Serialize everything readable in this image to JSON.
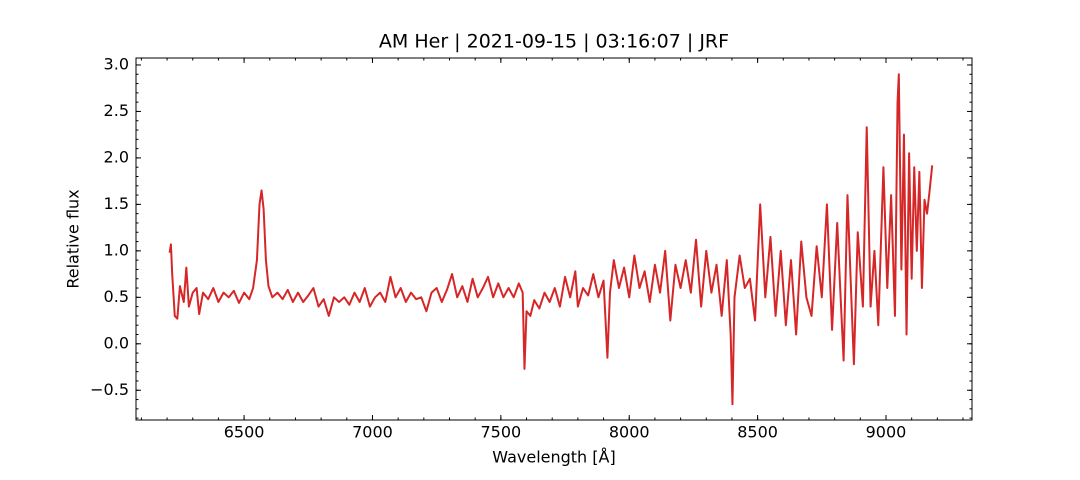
{
  "chart_data": {
    "type": "line",
    "title": "AM Her | 2021-09-15 | 03:16:07 | JRF",
    "x_label": "Wavelength [Å]",
    "y_label": "Relative flux",
    "color": "#d62728",
    "xlim": [
      6079,
      9335
    ],
    "ylim": [
      -0.82,
      3.075
    ],
    "xticks": [
      6500,
      7000,
      7500,
      8000,
      8500,
      9000
    ],
    "yticks": [
      {
        "value": -0.5,
        "label": "−0.5"
      },
      {
        "value": 0,
        "label": "0.0"
      },
      0.5,
      {
        "value": 1,
        "label": "1.0"
      },
      1.5,
      {
        "value": 2,
        "label": "2.0"
      },
      2.5,
      {
        "value": 3,
        "label": "3.0"
      }
    ],
    "x": [
      6210,
      6215,
      6220,
      6230,
      6240,
      6250,
      6265,
      6275,
      6285,
      6300,
      6315,
      6325,
      6340,
      6360,
      6380,
      6400,
      6420,
      6440,
      6460,
      6480,
      6500,
      6520,
      6535,
      6550,
      6560,
      6568,
      6576,
      6585,
      6595,
      6610,
      6630,
      6650,
      6670,
      6690,
      6710,
      6730,
      6750,
      6770,
      6790,
      6810,
      6830,
      6850,
      6870,
      6890,
      6910,
      6930,
      6950,
      6970,
      6990,
      7010,
      7030,
      7050,
      7070,
      7090,
      7110,
      7130,
      7150,
      7170,
      7190,
      7210,
      7230,
      7250,
      7270,
      7290,
      7310,
      7330,
      7350,
      7370,
      7390,
      7410,
      7430,
      7450,
      7470,
      7490,
      7510,
      7530,
      7550,
      7570,
      7585,
      7592,
      7600,
      7615,
      7630,
      7650,
      7670,
      7690,
      7710,
      7730,
      7750,
      7770,
      7790,
      7800,
      7820,
      7840,
      7860,
      7880,
      7900,
      7915,
      7925,
      7940,
      7960,
      7980,
      8000,
      8020,
      8040,
      8060,
      8080,
      8100,
      8120,
      8140,
      8160,
      8180,
      8200,
      8220,
      8240,
      8260,
      8280,
      8300,
      8320,
      8340,
      8360,
      8380,
      8395,
      8402,
      8410,
      8430,
      8450,
      8470,
      8490,
      8510,
      8530,
      8550,
      8570,
      8590,
      8610,
      8630,
      8650,
      8670,
      8690,
      8710,
      8730,
      8750,
      8770,
      8790,
      8810,
      8825,
      8835,
      8850,
      8865,
      8875,
      8890,
      8910,
      8925,
      8940,
      8955,
      8970,
      8990,
      9005,
      9020,
      9035,
      9045,
      9050,
      9060,
      9070,
      9080,
      9090,
      9100,
      9110,
      9120,
      9130,
      9140,
      9150,
      9160,
      9170,
      9180
    ],
    "values": [
      0.98,
      1.07,
      0.75,
      0.3,
      0.27,
      0.62,
      0.45,
      0.82,
      0.4,
      0.55,
      0.6,
      0.32,
      0.55,
      0.48,
      0.6,
      0.45,
      0.55,
      0.5,
      0.57,
      0.44,
      0.55,
      0.48,
      0.6,
      0.9,
      1.5,
      1.65,
      1.45,
      0.9,
      0.62,
      0.5,
      0.55,
      0.48,
      0.58,
      0.45,
      0.55,
      0.45,
      0.52,
      0.6,
      0.4,
      0.48,
      0.3,
      0.5,
      0.45,
      0.5,
      0.42,
      0.55,
      0.45,
      0.6,
      0.4,
      0.5,
      0.55,
      0.45,
      0.72,
      0.5,
      0.6,
      0.45,
      0.55,
      0.48,
      0.5,
      0.35,
      0.55,
      0.6,
      0.45,
      0.58,
      0.75,
      0.5,
      0.62,
      0.45,
      0.7,
      0.5,
      0.6,
      0.72,
      0.5,
      0.65,
      0.5,
      0.6,
      0.5,
      0.65,
      0.55,
      -0.27,
      0.35,
      0.3,
      0.47,
      0.38,
      0.55,
      0.45,
      0.6,
      0.4,
      0.72,
      0.5,
      0.78,
      0.4,
      0.6,
      0.52,
      0.75,
      0.5,
      0.68,
      -0.15,
      0.55,
      0.9,
      0.6,
      0.82,
      0.5,
      0.95,
      0.6,
      0.78,
      0.45,
      0.85,
      0.55,
      1.0,
      0.25,
      0.85,
      0.6,
      0.9,
      0.55,
      1.12,
      0.4,
      1.0,
      0.55,
      0.85,
      0.3,
      0.9,
      0.1,
      -0.65,
      0.5,
      0.95,
      0.6,
      0.7,
      0.25,
      1.5,
      0.5,
      1.15,
      0.3,
      1.0,
      0.2,
      0.9,
      0.1,
      1.1,
      0.5,
      0.3,
      1.05,
      0.5,
      1.5,
      0.15,
      1.3,
      0.4,
      -0.18,
      1.6,
      0.5,
      -0.22,
      1.2,
      0.4,
      2.33,
      0.4,
      1.0,
      0.2,
      1.9,
      0.6,
      1.6,
      0.3,
      2.6,
      2.9,
      0.8,
      2.25,
      0.1,
      2.05,
      0.7,
      1.9,
      1.0,
      1.85,
      0.6,
      1.55,
      1.4,
      1.65,
      1.92
    ]
  }
}
